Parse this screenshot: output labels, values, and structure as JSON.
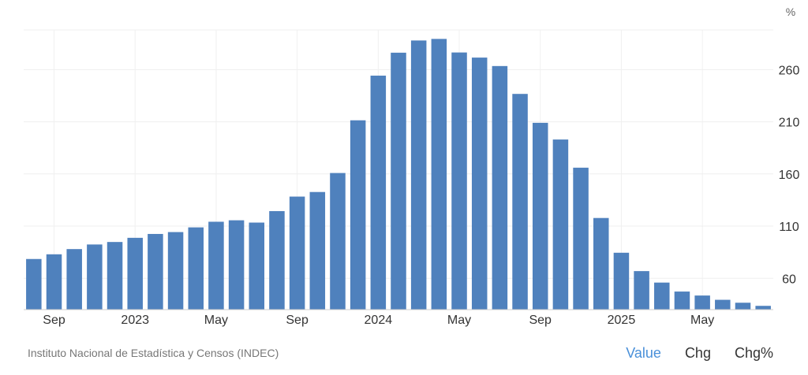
{
  "chart_data": {
    "type": "bar",
    "unit": "%",
    "color": "#4f81bd",
    "ylim": [
      30,
      298
    ],
    "yticks": [
      60,
      110,
      160,
      210,
      260
    ],
    "grid": true,
    "categories": [
      "2022-08",
      "2022-09",
      "2022-10",
      "2022-11",
      "2022-12",
      "2023-01",
      "2023-02",
      "2023-03",
      "2023-04",
      "2023-05",
      "2023-06",
      "2023-07",
      "2023-08",
      "2023-09",
      "2023-10",
      "2023-11",
      "2023-12",
      "2024-01",
      "2024-02",
      "2024-03",
      "2024-04",
      "2024-05",
      "2024-06",
      "2024-07",
      "2024-08",
      "2024-09",
      "2024-10",
      "2024-11",
      "2024-12",
      "2025-01",
      "2025-02",
      "2025-03",
      "2025-04",
      "2025-05",
      "2025-06",
      "2025-07",
      "2025-08"
    ],
    "values": [
      78.5,
      83,
      88,
      92.4,
      94.8,
      98.8,
      102.5,
      104.3,
      108.8,
      114.2,
      115.6,
      113.4,
      124.4,
      138.3,
      142.7,
      160.9,
      211.4,
      254.2,
      276.2,
      287.9,
      289.4,
      276.4,
      271.5,
      263.4,
      236.7,
      209,
      193,
      166,
      117.8,
      84.5,
      66.9,
      55.9,
      47.3,
      43.5,
      39.4,
      36.6,
      33.6
    ],
    "xtick_labels": [
      {
        "index": 1,
        "label": "Sep"
      },
      {
        "index": 5,
        "label": "2023"
      },
      {
        "index": 9,
        "label": "May"
      },
      {
        "index": 13,
        "label": "Sep"
      },
      {
        "index": 17,
        "label": "2024"
      },
      {
        "index": 21,
        "label": "May"
      },
      {
        "index": 25,
        "label": "Sep"
      },
      {
        "index": 29,
        "label": "2025"
      },
      {
        "index": 33,
        "label": "May"
      }
    ]
  },
  "footer": {
    "source": "Instituto Nacional de Estadística y Censos (INDEC)",
    "toggles": [
      "Value",
      "Chg",
      "Chg%"
    ],
    "active_toggle": "Value",
    "active_color": "#4a90d9"
  }
}
